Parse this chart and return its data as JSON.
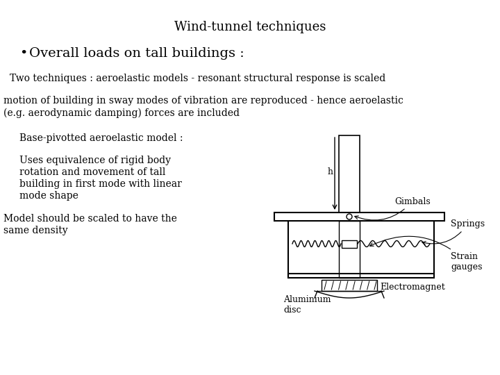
{
  "title": "Wind-tunnel techniques",
  "bullet_text": "Overall loads on tall buildings :",
  "line1": "Two techniques : aeroelastic models - resonant structural response is scaled",
  "line2a": "motion of building in sway modes of vibration are reproduced - hence aeroelastic",
  "line2b": "(e.g. aerodynamic damping) forces are included",
  "sub1": "Base-pivotted aeroelastic model :",
  "sub2a": "Uses equivalence of rigid body",
  "sub2b": "rotation and movement of tall",
  "sub2c": "building in first mode with linear",
  "sub2d": "mode shape",
  "sub3a": "Model should be scaled to have the",
  "sub3b": "same density",
  "label_gimbals": "Gimbals",
  "label_springs": "Springs",
  "label_strain": "Strain\ngauges",
  "label_electromagnet": "Electromagnet",
  "label_aluminium": "Aluminium\ndisc",
  "label_h": "h",
  "bg_color": "#ffffff",
  "text_color": "#000000",
  "line_color": "#000000",
  "title_fontsize": 13,
  "bullet_fontsize": 14,
  "body_fontsize": 10,
  "sub_fontsize": 10,
  "label_fontsize": 8
}
